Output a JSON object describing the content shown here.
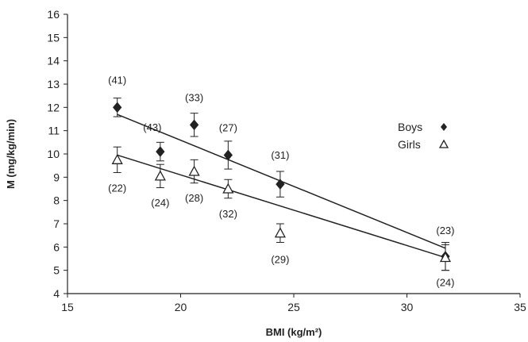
{
  "chart_data": {
    "type": "scatter",
    "xlabel": "BMI (kg/m²)",
    "ylabel": "M (mg/kg/min)",
    "xlim": [
      15,
      35
    ],
    "ylim": [
      4,
      16
    ],
    "xticks": [
      15,
      20,
      25,
      30,
      35
    ],
    "yticks": [
      4,
      5,
      6,
      7,
      8,
      9,
      10,
      11,
      12,
      13,
      14,
      15,
      16
    ],
    "grid": false,
    "legend_position": "right",
    "series": [
      {
        "name": "Boys",
        "marker": "filled-diamond",
        "points": [
          {
            "x": 17.2,
            "y": 12.0,
            "err": 0.4,
            "n": "(41)"
          },
          {
            "x": 19.1,
            "y": 10.1,
            "err": 0.4,
            "n": "(43)"
          },
          {
            "x": 20.6,
            "y": 11.25,
            "err": 0.5,
            "n": "(33)"
          },
          {
            "x": 22.1,
            "y": 9.95,
            "err": 0.6,
            "n": "(27)"
          },
          {
            "x": 24.4,
            "y": 8.7,
            "err": 0.55,
            "n": "(31)"
          },
          {
            "x": 31.7,
            "y": 5.6,
            "err": 0.6,
            "n": "(23)"
          }
        ],
        "trend": {
          "x": [
            17.2,
            31.7
          ],
          "y": [
            11.7,
            5.95
          ]
        }
      },
      {
        "name": "Girls",
        "marker": "open-triangle",
        "points": [
          {
            "x": 17.2,
            "y": 9.75,
            "err": 0.55,
            "n": "(22)"
          },
          {
            "x": 19.1,
            "y": 9.05,
            "err": 0.5,
            "n": "(24)"
          },
          {
            "x": 20.6,
            "y": 9.25,
            "err": 0.5,
            "n": "(28)"
          },
          {
            "x": 22.1,
            "y": 8.5,
            "err": 0.4,
            "n": "(32)"
          },
          {
            "x": 24.4,
            "y": 6.6,
            "err": 0.4,
            "n": "(29)"
          },
          {
            "x": 31.7,
            "y": 5.55,
            "err": 0.55,
            "n": "(24)"
          }
        ],
        "trend": {
          "x": [
            17.2,
            31.7
          ],
          "y": [
            9.95,
            5.55
          ]
        }
      }
    ]
  }
}
